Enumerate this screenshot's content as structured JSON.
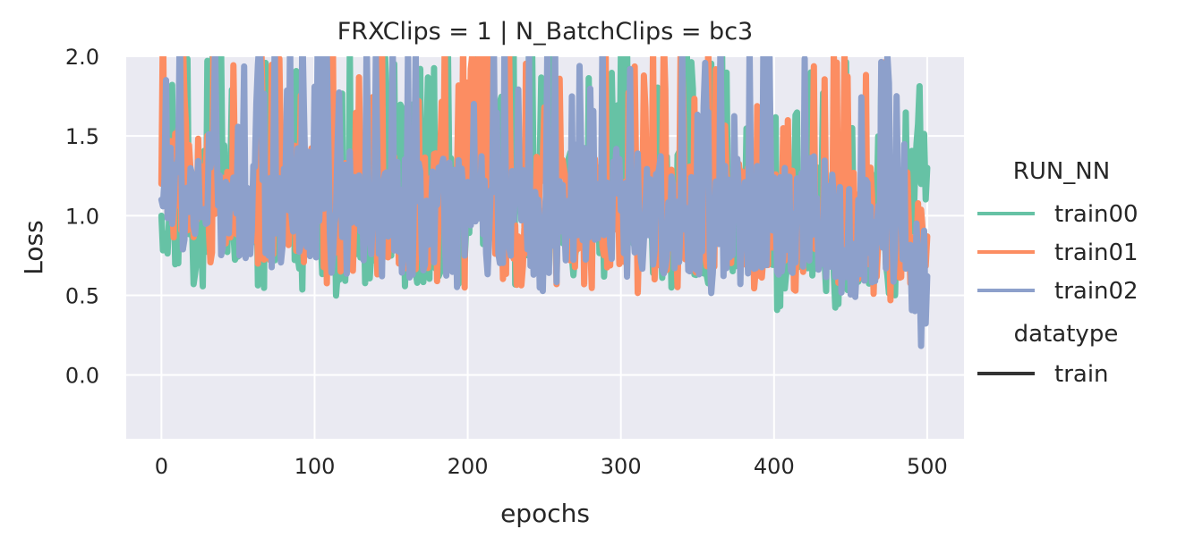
{
  "chart_data": {
    "type": "line",
    "title": "FRXClips = 1 | N_BatchClips = bc3",
    "xlabel": "epochs",
    "ylabel": "Loss",
    "xlim": [
      -23,
      524
    ],
    "ylim": [
      -0.4,
      2.0
    ],
    "x_ticks": [
      0,
      100,
      200,
      300,
      400,
      500
    ],
    "x_tick_labels": [
      "0",
      "100",
      "200",
      "300",
      "400",
      "500"
    ],
    "y_ticks": [
      0.0,
      0.5,
      1.0,
      1.5,
      2.0
    ],
    "y_tick_labels": [
      "0.0",
      "0.5",
      "1.0",
      "1.5",
      "2.0"
    ],
    "grid": true,
    "legend_placement": "right",
    "legend": {
      "hue_title": "RUN_NN",
      "style_title": "datatype",
      "style_entries": [
        {
          "name": "train",
          "color": "#333333"
        }
      ]
    },
    "series": [
      {
        "name": "train00",
        "color": "#66c2a5",
        "x": [
          0,
          25,
          50,
          75,
          100,
          125,
          150,
          175,
          200,
          225,
          250,
          275,
          300,
          325,
          350,
          375,
          400,
          425,
          450,
          475,
          500
        ],
        "y": [
          1.0,
          1.05,
          1.1,
          1.0,
          1.0,
          0.95,
          0.95,
          0.9,
          1.1,
          1.05,
          1.05,
          1.1,
          1.1,
          1.05,
          1.0,
          0.95,
          0.9,
          0.95,
          0.9,
          0.9,
          1.3
        ]
      },
      {
        "name": "train01",
        "color": "#fc8d62",
        "x": [
          0,
          25,
          50,
          75,
          100,
          125,
          150,
          175,
          200,
          225,
          250,
          275,
          300,
          325,
          350,
          375,
          400,
          425,
          450,
          475,
          500
        ],
        "y": [
          1.2,
          1.2,
          1.15,
          1.1,
          1.05,
          1.0,
          1.0,
          1.05,
          1.0,
          1.05,
          1.0,
          1.05,
          1.0,
          1.0,
          1.0,
          1.0,
          0.95,
          0.95,
          0.95,
          0.95,
          0.87
        ]
      },
      {
        "name": "train02",
        "color": "#8da0cb",
        "x": [
          0,
          25,
          50,
          75,
          100,
          125,
          150,
          175,
          200,
          225,
          250,
          275,
          300,
          325,
          350,
          375,
          400,
          425,
          450,
          475,
          500
        ],
        "y": [
          1.1,
          1.15,
          1.2,
          1.05,
          1.1,
          1.05,
          1.0,
          0.95,
          1.05,
          1.0,
          1.0,
          1.1,
          1.05,
          1.0,
          1.0,
          1.0,
          1.0,
          1.0,
          0.95,
          0.95,
          0.62
        ]
      }
    ]
  }
}
